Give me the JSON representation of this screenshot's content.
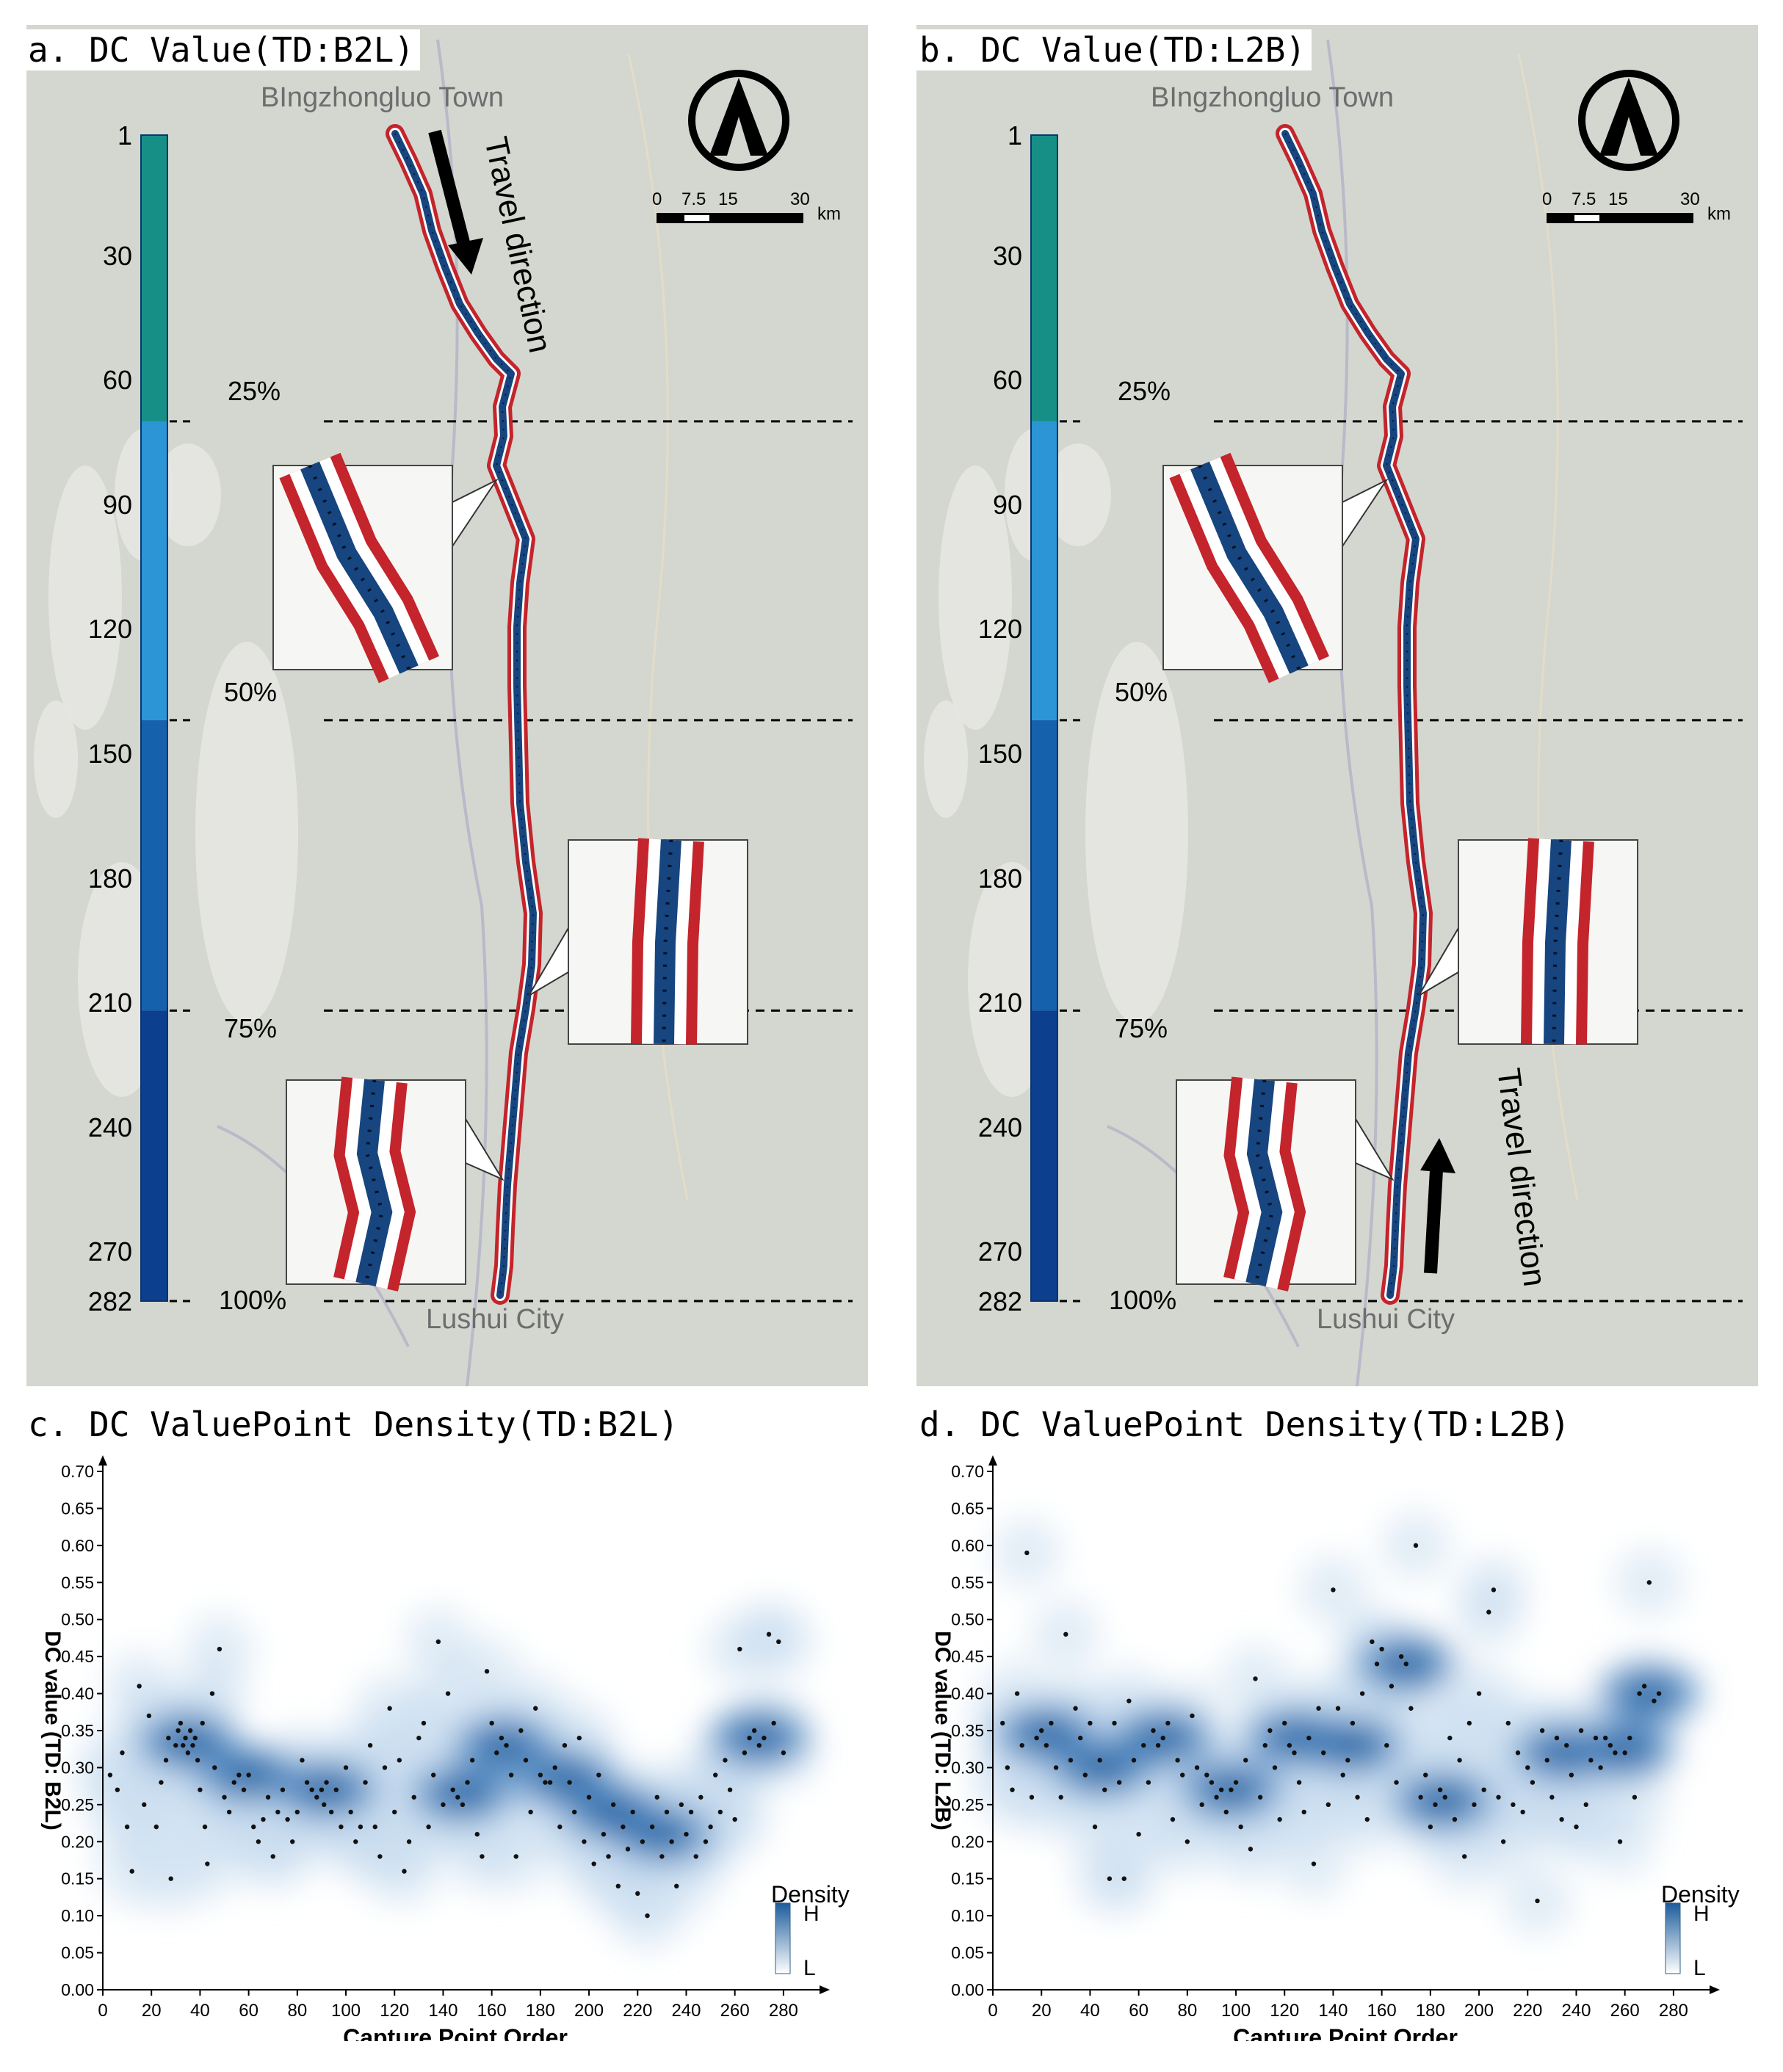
{
  "panels": {
    "a": {
      "title": "a. DC Value(TD:B2L)",
      "top_place": "BIngzhongluo Town",
      "bottom_place": "Lushui City",
      "travel_text": "Travel direction"
    },
    "b": {
      "title": "b. DC Value(TD:L2B)",
      "top_place": "BIngzhongluo Town",
      "bottom_place": "Lushui City",
      "travel_text": "Travel direction"
    },
    "c": {
      "title": "c. DC ValuePoint Density(TD:B2L)"
    },
    "d": {
      "title": "d. DC ValuePoint Density(TD:L2B)"
    }
  },
  "colorbar": {
    "ticks": [
      "1",
      "30",
      "60",
      "90",
      "120",
      "150",
      "180",
      "210",
      "240",
      "270",
      "282"
    ],
    "segments": [
      {
        "from": 1,
        "to": 70,
        "color": "#168f86"
      },
      {
        "from": 70,
        "to": 142,
        "color": "#2b95d5"
      },
      {
        "from": 142,
        "to": 212,
        "color": "#1561ab"
      },
      {
        "from": 212,
        "to": 282,
        "color": "#0d3f8f"
      }
    ],
    "percent_labels": [
      "25%",
      "50%",
      "75%",
      "100%"
    ]
  },
  "scale_bar": {
    "labels": [
      "0",
      "7.5",
      "15",
      "30"
    ],
    "unit": "km"
  },
  "density_legend": {
    "title": "Density",
    "high": "H",
    "low": "L"
  },
  "colors": {
    "route_red": "#c4242b",
    "route_blue": "#17457f",
    "density_dark": "#1c5c9c",
    "map_bg": "#d3d7cf"
  },
  "chart_data": [
    {
      "type": "scatter",
      "title": "c. DC ValuePoint Density(TD:B2L)",
      "xlabel": "Capture Point Order",
      "ylabel": "DC value (TD: B2L)",
      "xlim": [
        0,
        290
      ],
      "ylim": [
        0,
        0.7
      ],
      "xticks": [
        "0",
        "20",
        "40",
        "60",
        "80",
        "100",
        "120",
        "140",
        "160",
        "180",
        "200",
        "220",
        "240",
        "260",
        "280"
      ],
      "yticks": [
        "0.00",
        "0.05",
        "0.10",
        "0.15",
        "0.20",
        "0.25",
        "0.30",
        "0.35",
        "0.40",
        "0.45",
        "0.50",
        "0.55",
        "0.60",
        "0.65",
        "0.70"
      ],
      "density_peaks": [
        [
          35,
          0.335
        ],
        [
          92,
          0.27
        ],
        [
          148,
          0.265
        ],
        [
          165,
          0.33
        ],
        [
          190,
          0.285
        ],
        [
          270,
          0.34
        ],
        [
          230,
          0.21
        ],
        [
          60,
          0.29
        ],
        [
          210,
          0.24
        ]
      ],
      "points": [
        [
          3,
          0.29
        ],
        [
          6,
          0.27
        ],
        [
          8,
          0.32
        ],
        [
          10,
          0.22
        ],
        [
          12,
          0.16
        ],
        [
          15,
          0.41
        ],
        [
          17,
          0.25
        ],
        [
          19,
          0.37
        ],
        [
          22,
          0.22
        ],
        [
          24,
          0.28
        ],
        [
          26,
          0.31
        ],
        [
          27,
          0.34
        ],
        [
          28,
          0.15
        ],
        [
          30,
          0.33
        ],
        [
          31,
          0.35
        ],
        [
          32,
          0.36
        ],
        [
          33,
          0.33
        ],
        [
          34,
          0.34
        ],
        [
          35,
          0.32
        ],
        [
          36,
          0.35
        ],
        [
          37,
          0.33
        ],
        [
          38,
          0.34
        ],
        [
          39,
          0.31
        ],
        [
          40,
          0.27
        ],
        [
          41,
          0.36
        ],
        [
          42,
          0.22
        ],
        [
          43,
          0.17
        ],
        [
          45,
          0.4
        ],
        [
          46,
          0.3
        ],
        [
          48,
          0.46
        ],
        [
          50,
          0.26
        ],
        [
          52,
          0.24
        ],
        [
          54,
          0.28
        ],
        [
          56,
          0.29
        ],
        [
          58,
          0.27
        ],
        [
          60,
          0.29
        ],
        [
          62,
          0.22
        ],
        [
          64,
          0.2
        ],
        [
          66,
          0.23
        ],
        [
          68,
          0.26
        ],
        [
          70,
          0.18
        ],
        [
          72,
          0.24
        ],
        [
          74,
          0.27
        ],
        [
          76,
          0.23
        ],
        [
          78,
          0.2
        ],
        [
          80,
          0.24
        ],
        [
          82,
          0.31
        ],
        [
          84,
          0.28
        ],
        [
          86,
          0.27
        ],
        [
          88,
          0.26
        ],
        [
          90,
          0.27
        ],
        [
          91,
          0.25
        ],
        [
          92,
          0.28
        ],
        [
          94,
          0.24
        ],
        [
          96,
          0.27
        ],
        [
          98,
          0.22
        ],
        [
          100,
          0.3
        ],
        [
          102,
          0.24
        ],
        [
          104,
          0.2
        ],
        [
          106,
          0.22
        ],
        [
          108,
          0.28
        ],
        [
          110,
          0.33
        ],
        [
          112,
          0.22
        ],
        [
          114,
          0.18
        ],
        [
          116,
          0.3
        ],
        [
          118,
          0.38
        ],
        [
          120,
          0.24
        ],
        [
          122,
          0.31
        ],
        [
          124,
          0.16
        ],
        [
          126,
          0.2
        ],
        [
          128,
          0.26
        ],
        [
          130,
          0.34
        ],
        [
          132,
          0.36
        ],
        [
          134,
          0.22
        ],
        [
          136,
          0.29
        ],
        [
          138,
          0.47
        ],
        [
          140,
          0.25
        ],
        [
          142,
          0.4
        ],
        [
          144,
          0.27
        ],
        [
          146,
          0.26
        ],
        [
          148,
          0.25
        ],
        [
          150,
          0.28
        ],
        [
          152,
          0.31
        ],
        [
          154,
          0.21
        ],
        [
          156,
          0.18
        ],
        [
          158,
          0.43
        ],
        [
          160,
          0.36
        ],
        [
          162,
          0.32
        ],
        [
          164,
          0.34
        ],
        [
          166,
          0.33
        ],
        [
          168,
          0.29
        ],
        [
          170,
          0.18
        ],
        [
          172,
          0.35
        ],
        [
          174,
          0.31
        ],
        [
          176,
          0.24
        ],
        [
          178,
          0.38
        ],
        [
          180,
          0.29
        ],
        [
          182,
          0.28
        ],
        [
          184,
          0.28
        ],
        [
          186,
          0.3
        ],
        [
          188,
          0.22
        ],
        [
          190,
          0.33
        ],
        [
          192,
          0.28
        ],
        [
          194,
          0.24
        ],
        [
          196,
          0.34
        ],
        [
          198,
          0.2
        ],
        [
          200,
          0.26
        ],
        [
          202,
          0.17
        ],
        [
          204,
          0.29
        ],
        [
          206,
          0.21
        ],
        [
          208,
          0.18
        ],
        [
          210,
          0.25
        ],
        [
          212,
          0.14
        ],
        [
          214,
          0.22
        ],
        [
          216,
          0.19
        ],
        [
          218,
          0.24
        ],
        [
          220,
          0.13
        ],
        [
          222,
          0.2
        ],
        [
          224,
          0.1
        ],
        [
          226,
          0.22
        ],
        [
          228,
          0.26
        ],
        [
          230,
          0.18
        ],
        [
          232,
          0.24
        ],
        [
          234,
          0.2
        ],
        [
          236,
          0.14
        ],
        [
          238,
          0.25
        ],
        [
          240,
          0.21
        ],
        [
          242,
          0.24
        ],
        [
          244,
          0.18
        ],
        [
          246,
          0.26
        ],
        [
          248,
          0.2
        ],
        [
          250,
          0.22
        ],
        [
          252,
          0.29
        ],
        [
          254,
          0.24
        ],
        [
          256,
          0.31
        ],
        [
          258,
          0.27
        ],
        [
          260,
          0.23
        ],
        [
          262,
          0.46
        ],
        [
          264,
          0.32
        ],
        [
          266,
          0.34
        ],
        [
          268,
          0.35
        ],
        [
          270,
          0.33
        ],
        [
          272,
          0.34
        ],
        [
          274,
          0.48
        ],
        [
          276,
          0.36
        ],
        [
          278,
          0.47
        ],
        [
          280,
          0.32
        ]
      ]
    },
    {
      "type": "scatter",
      "title": "d. DC ValuePoint Density(TD:L2B)",
      "xlabel": "Capture Point Order",
      "ylabel": "DC value (TD: L2B)",
      "xlim": [
        0,
        290
      ],
      "ylim": [
        0,
        0.7
      ],
      "xticks": [
        "0",
        "20",
        "40",
        "60",
        "80",
        "100",
        "120",
        "140",
        "160",
        "180",
        "200",
        "220",
        "240",
        "260",
        "280"
      ],
      "yticks": [
        "0.00",
        "0.05",
        "0.10",
        "0.15",
        "0.20",
        "0.25",
        "0.30",
        "0.35",
        "0.40",
        "0.45",
        "0.50",
        "0.55",
        "0.60",
        "0.65",
        "0.70"
      ],
      "density_peaks": [
        [
          22,
          0.345
        ],
        [
          70,
          0.34
        ],
        [
          98,
          0.27
        ],
        [
          125,
          0.34
        ],
        [
          148,
          0.33
        ],
        [
          170,
          0.44
        ],
        [
          185,
          0.255
        ],
        [
          235,
          0.32
        ],
        [
          260,
          0.325
        ],
        [
          270,
          0.4
        ],
        [
          45,
          0.3
        ]
      ],
      "points": [
        [
          4,
          0.36
        ],
        [
          6,
          0.3
        ],
        [
          8,
          0.27
        ],
        [
          10,
          0.4
        ],
        [
          12,
          0.33
        ],
        [
          14,
          0.59
        ],
        [
          16,
          0.26
        ],
        [
          18,
          0.34
        ],
        [
          20,
          0.35
        ],
        [
          22,
          0.33
        ],
        [
          24,
          0.36
        ],
        [
          26,
          0.3
        ],
        [
          28,
          0.26
        ],
        [
          30,
          0.48
        ],
        [
          32,
          0.31
        ],
        [
          34,
          0.38
        ],
        [
          36,
          0.34
        ],
        [
          38,
          0.29
        ],
        [
          40,
          0.36
        ],
        [
          42,
          0.22
        ],
        [
          44,
          0.31
        ],
        [
          46,
          0.27
        ],
        [
          48,
          0.15
        ],
        [
          50,
          0.36
        ],
        [
          52,
          0.28
        ],
        [
          54,
          0.15
        ],
        [
          56,
          0.39
        ],
        [
          58,
          0.31
        ],
        [
          60,
          0.21
        ],
        [
          62,
          0.33
        ],
        [
          64,
          0.28
        ],
        [
          66,
          0.35
        ],
        [
          68,
          0.33
        ],
        [
          70,
          0.34
        ],
        [
          72,
          0.36
        ],
        [
          74,
          0.23
        ],
        [
          76,
          0.31
        ],
        [
          78,
          0.29
        ],
        [
          80,
          0.2
        ],
        [
          82,
          0.37
        ],
        [
          84,
          0.3
        ],
        [
          86,
          0.25
        ],
        [
          88,
          0.29
        ],
        [
          90,
          0.28
        ],
        [
          92,
          0.26
        ],
        [
          94,
          0.27
        ],
        [
          96,
          0.24
        ],
        [
          98,
          0.27
        ],
        [
          100,
          0.28
        ],
        [
          102,
          0.22
        ],
        [
          104,
          0.31
        ],
        [
          106,
          0.19
        ],
        [
          108,
          0.42
        ],
        [
          110,
          0.26
        ],
        [
          112,
          0.33
        ],
        [
          114,
          0.35
        ],
        [
          116,
          0.3
        ],
        [
          118,
          0.23
        ],
        [
          120,
          0.36
        ],
        [
          122,
          0.33
        ],
        [
          124,
          0.32
        ],
        [
          126,
          0.28
        ],
        [
          128,
          0.24
        ],
        [
          130,
          0.34
        ],
        [
          132,
          0.17
        ],
        [
          134,
          0.38
        ],
        [
          136,
          0.32
        ],
        [
          138,
          0.25
        ],
        [
          140,
          0.54
        ],
        [
          142,
          0.38
        ],
        [
          144,
          0.29
        ],
        [
          146,
          0.31
        ],
        [
          148,
          0.36
        ],
        [
          150,
          0.26
        ],
        [
          152,
          0.4
        ],
        [
          154,
          0.23
        ],
        [
          156,
          0.47
        ],
        [
          158,
          0.44
        ],
        [
          160,
          0.46
        ],
        [
          162,
          0.33
        ],
        [
          164,
          0.41
        ],
        [
          166,
          0.28
        ],
        [
          168,
          0.45
        ],
        [
          170,
          0.44
        ],
        [
          172,
          0.38
        ],
        [
          174,
          0.6
        ],
        [
          176,
          0.26
        ],
        [
          178,
          0.29
        ],
        [
          180,
          0.22
        ],
        [
          182,
          0.25
        ],
        [
          184,
          0.27
        ],
        [
          186,
          0.26
        ],
        [
          188,
          0.34
        ],
        [
          190,
          0.23
        ],
        [
          192,
          0.31
        ],
        [
          194,
          0.18
        ],
        [
          196,
          0.36
        ],
        [
          198,
          0.25
        ],
        [
          200,
          0.4
        ],
        [
          202,
          0.27
        ],
        [
          204,
          0.51
        ],
        [
          206,
          0.54
        ],
        [
          208,
          0.26
        ],
        [
          210,
          0.2
        ],
        [
          212,
          0.36
        ],
        [
          214,
          0.25
        ],
        [
          216,
          0.32
        ],
        [
          218,
          0.24
        ],
        [
          220,
          0.3
        ],
        [
          222,
          0.28
        ],
        [
          224,
          0.12
        ],
        [
          226,
          0.35
        ],
        [
          228,
          0.31
        ],
        [
          230,
          0.26
        ],
        [
          232,
          0.34
        ],
        [
          234,
          0.23
        ],
        [
          236,
          0.33
        ],
        [
          238,
          0.29
        ],
        [
          240,
          0.22
        ],
        [
          242,
          0.35
        ],
        [
          244,
          0.25
        ],
        [
          246,
          0.31
        ],
        [
          248,
          0.34
        ],
        [
          250,
          0.3
        ],
        [
          252,
          0.34
        ],
        [
          254,
          0.33
        ],
        [
          256,
          0.32
        ],
        [
          258,
          0.2
        ],
        [
          260,
          0.32
        ],
        [
          262,
          0.34
        ],
        [
          264,
          0.26
        ],
        [
          266,
          0.4
        ],
        [
          268,
          0.41
        ],
        [
          270,
          0.55
        ],
        [
          272,
          0.39
        ],
        [
          274,
          0.4
        ]
      ]
    }
  ]
}
